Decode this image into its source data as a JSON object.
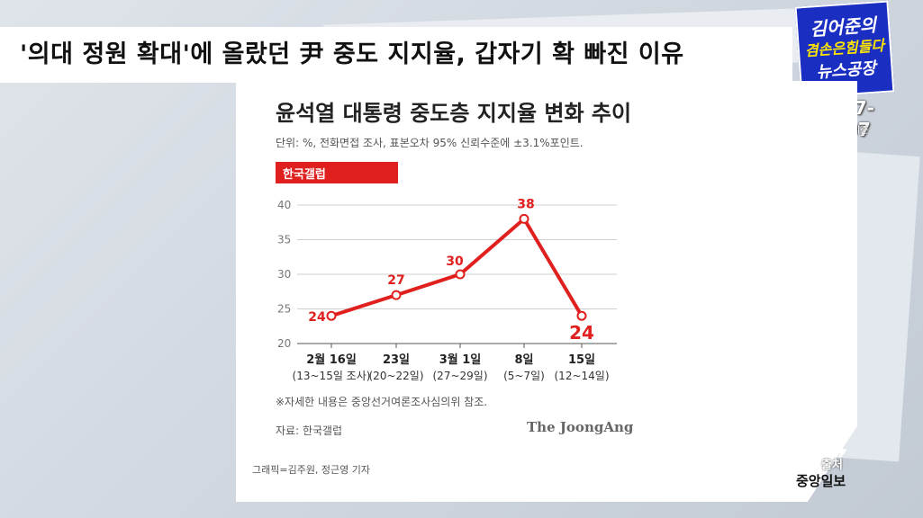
{
  "headline": "'의대 정원 확대'에 올랐던 尹 중도 지지율, 갑자기 확 빠진 이유",
  "logo": {
    "line1": "김어준의",
    "line2": "겸손은힘들다",
    "line3": "뉴스공장",
    "phone": "1877-1907",
    "ars": "ARS 헬씨즌"
  },
  "card": {
    "title": "윤석열 대통령 중도층 지지율 변화 추이",
    "unit_note": "단위: %, 전화면접 조사, 표본오차 95% 신뢰수준에 ±3.1%포인트.",
    "tag": "한국갤럽",
    "footnote": "※자세한 내용은 중앙선거여론조사심의위 참조.",
    "source": "자료: 한국갤럽",
    "brand": "The JoongAng",
    "credit": "그래픽=김주원, 정근영 기자"
  },
  "source_badge": {
    "label": "출처",
    "name": "중앙일보"
  },
  "colors": {
    "accent": "#e0201e",
    "logo_bg": "#1b2ec2",
    "logo_yellow": "#ffe600"
  },
  "chart_data": {
    "type": "line",
    "title": "윤석열 대통령 중도층 지지율 변화 추이",
    "ylabel": "",
    "xlabel": "",
    "categories": [
      "2월 16일",
      "23일",
      "3월 1일",
      "8일",
      "15일"
    ],
    "sublabels": [
      "(13~15일 조사)",
      "(20~22일)",
      "(27~29일)",
      "(5~7일)",
      "(12~14일)"
    ],
    "series": [
      {
        "values": [
          24,
          27,
          30,
          38,
          24
        ]
      }
    ],
    "data_labels": [
      "24",
      "27",
      "30",
      "38",
      "24"
    ],
    "yticks": [
      "40",
      "35",
      "30",
      "25",
      "20"
    ],
    "ylim": [
      20,
      40
    ],
    "grid": true,
    "line_color": "#e0201e"
  }
}
